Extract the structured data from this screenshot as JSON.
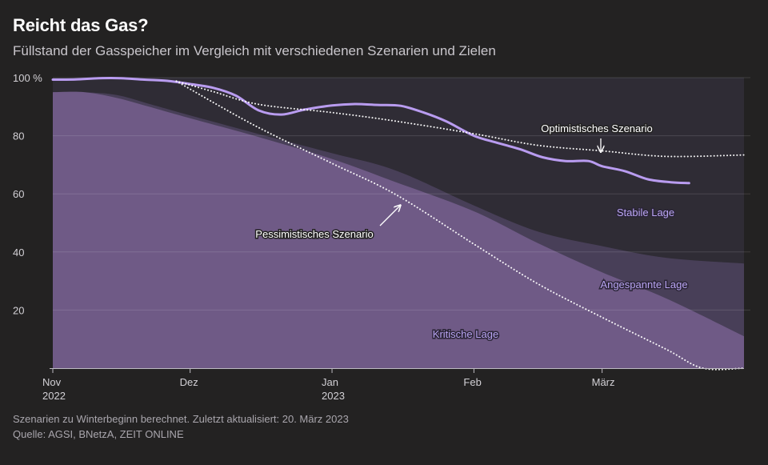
{
  "header": {
    "title": "Reicht das Gas?",
    "subtitle": "Füllstand der Gasspeicher im Vergleich mit verschiedenen Szenarien und Zielen"
  },
  "footer": {
    "note": "Szenarien zu Winterbeginn berechnet. Zuletzt aktualisiert: 20. März 2023",
    "source": "Quelle: AGSI, BNetzA, ZEIT ONLINE"
  },
  "colors": {
    "background": "#232222",
    "plot_background": "#2f2c35",
    "zone_angespannt": "#483f58",
    "zone_kritisch": "#6f5a86",
    "actual_line": "#b99cf0",
    "scenario_line": "#ffffff",
    "zone_label": "#b9a4f3"
  },
  "chart_data": {
    "type": "line",
    "title": "Reicht das Gas?",
    "subtitle": "Füllstand der Gasspeicher im Vergleich mit verschiedenen Szenarien und Zielen",
    "xlabel": "",
    "ylabel": "",
    "x_range": [
      "2022-11-01",
      "2023-04-01"
    ],
    "ylim": [
      0,
      100
    ],
    "y_unit": "%",
    "y_ticks": [
      20,
      40,
      60,
      80,
      100
    ],
    "y_tick_labels": [
      "20",
      "40",
      "60",
      "80",
      "100 %"
    ],
    "x_ticks": [
      {
        "date": "2022-11-01",
        "label": "Nov",
        "sublabel": "2022"
      },
      {
        "date": "2022-12-01",
        "label": "Dez",
        "sublabel": ""
      },
      {
        "date": "2023-01-01",
        "label": "Jan",
        "sublabel": "2023"
      },
      {
        "date": "2023-02-01",
        "label": "Feb",
        "sublabel": ""
      },
      {
        "date": "2023-03-01",
        "label": "März",
        "sublabel": ""
      }
    ],
    "grid": true,
    "zones": [
      {
        "label": "Kritische Lage",
        "upper_boundary": [
          [
            "2022-11-01",
            95
          ],
          [
            "2022-11-08",
            95
          ],
          [
            "2022-11-15",
            93
          ],
          [
            "2022-11-22",
            90
          ],
          [
            "2022-12-01",
            86
          ],
          [
            "2022-12-15",
            80
          ],
          [
            "2023-01-01",
            72
          ],
          [
            "2023-01-15",
            64
          ],
          [
            "2023-02-01",
            54
          ],
          [
            "2023-02-15",
            43
          ],
          [
            "2023-03-01",
            33
          ],
          [
            "2023-03-15",
            24
          ],
          [
            "2023-04-01",
            11
          ]
        ]
      },
      {
        "label": "Angespannte Lage",
        "upper_boundary": [
          [
            "2022-11-01",
            95
          ],
          [
            "2022-11-08",
            95
          ],
          [
            "2022-11-15",
            94
          ],
          [
            "2022-11-22",
            91
          ],
          [
            "2022-12-01",
            87
          ],
          [
            "2022-12-15",
            81
          ],
          [
            "2023-01-01",
            74
          ],
          [
            "2023-01-15",
            68
          ],
          [
            "2023-02-01",
            56
          ],
          [
            "2023-02-15",
            47
          ],
          [
            "2023-03-01",
            42
          ],
          [
            "2023-03-15",
            38
          ],
          [
            "2023-04-01",
            36
          ]
        ]
      },
      {
        "label": "Stabile Lage",
        "upper_boundary": [
          [
            "2022-11-01",
            100
          ],
          [
            "2023-04-01",
            100
          ]
        ]
      }
    ],
    "series": [
      {
        "name": "",
        "style": "solid",
        "points": [
          [
            "2022-11-01",
            99.3
          ],
          [
            "2022-11-06",
            99.4
          ],
          [
            "2022-11-11",
            99.8
          ],
          [
            "2022-11-16",
            99.8
          ],
          [
            "2022-11-21",
            99.3
          ],
          [
            "2022-11-26",
            98.9
          ],
          [
            "2022-12-01",
            97.8
          ],
          [
            "2022-12-06",
            96.5
          ],
          [
            "2022-12-11",
            93.8
          ],
          [
            "2022-12-16",
            88.7
          ],
          [
            "2022-12-21",
            87.3
          ],
          [
            "2022-12-26",
            89
          ],
          [
            "2023-01-01",
            90.4
          ],
          [
            "2023-01-06",
            90.9
          ],
          [
            "2023-01-11",
            90.6
          ],
          [
            "2023-01-16",
            90.3
          ],
          [
            "2023-01-21",
            88
          ],
          [
            "2023-01-26",
            84.9
          ],
          [
            "2023-02-01",
            80
          ],
          [
            "2023-02-06",
            77.6
          ],
          [
            "2023-02-11",
            75.4
          ],
          [
            "2023-02-16",
            72.6
          ],
          [
            "2023-02-21",
            71.3
          ],
          [
            "2023-02-26",
            71.3
          ],
          [
            "2023-03-01",
            69.5
          ],
          [
            "2023-03-06",
            67.8
          ],
          [
            "2023-03-11",
            65
          ],
          [
            "2023-03-16",
            64
          ],
          [
            "2023-03-20",
            63.7
          ]
        ]
      },
      {
        "name": "Optimistisches Szenario",
        "style": "dotted",
        "points": [
          [
            "2022-11-28",
            98.8
          ],
          [
            "2022-12-06",
            95.2
          ],
          [
            "2022-12-16",
            90.8
          ],
          [
            "2023-01-01",
            88
          ],
          [
            "2023-01-15",
            85
          ],
          [
            "2023-02-01",
            80.7
          ],
          [
            "2023-02-15",
            76.7
          ],
          [
            "2023-03-01",
            74.8
          ],
          [
            "2023-03-15",
            72.9
          ],
          [
            "2023-04-01",
            73.4
          ]
        ]
      },
      {
        "name": "Pessimistisches Szenario",
        "style": "dotted",
        "points": [
          [
            "2022-11-28",
            98.8
          ],
          [
            "2022-12-15",
            83.6
          ],
          [
            "2023-01-01",
            70.5
          ],
          [
            "2023-01-15",
            59.7
          ],
          [
            "2023-02-01",
            42.7
          ],
          [
            "2023-02-15",
            29
          ],
          [
            "2023-03-01",
            17.5
          ],
          [
            "2023-03-15",
            6.5
          ],
          [
            "2023-03-23",
            0
          ],
          [
            "2023-04-01",
            0
          ]
        ]
      }
    ],
    "annotations": [
      {
        "text": "Optimistisches Szenario",
        "color": "white"
      },
      {
        "text": "Pessimistisches Szenario",
        "color": "white"
      },
      {
        "text": "Stabile Lage",
        "color": "purple"
      },
      {
        "text": "Angespannte Lage",
        "color": "purple"
      },
      {
        "text": "Kritische Lage",
        "color": "purple"
      }
    ]
  }
}
